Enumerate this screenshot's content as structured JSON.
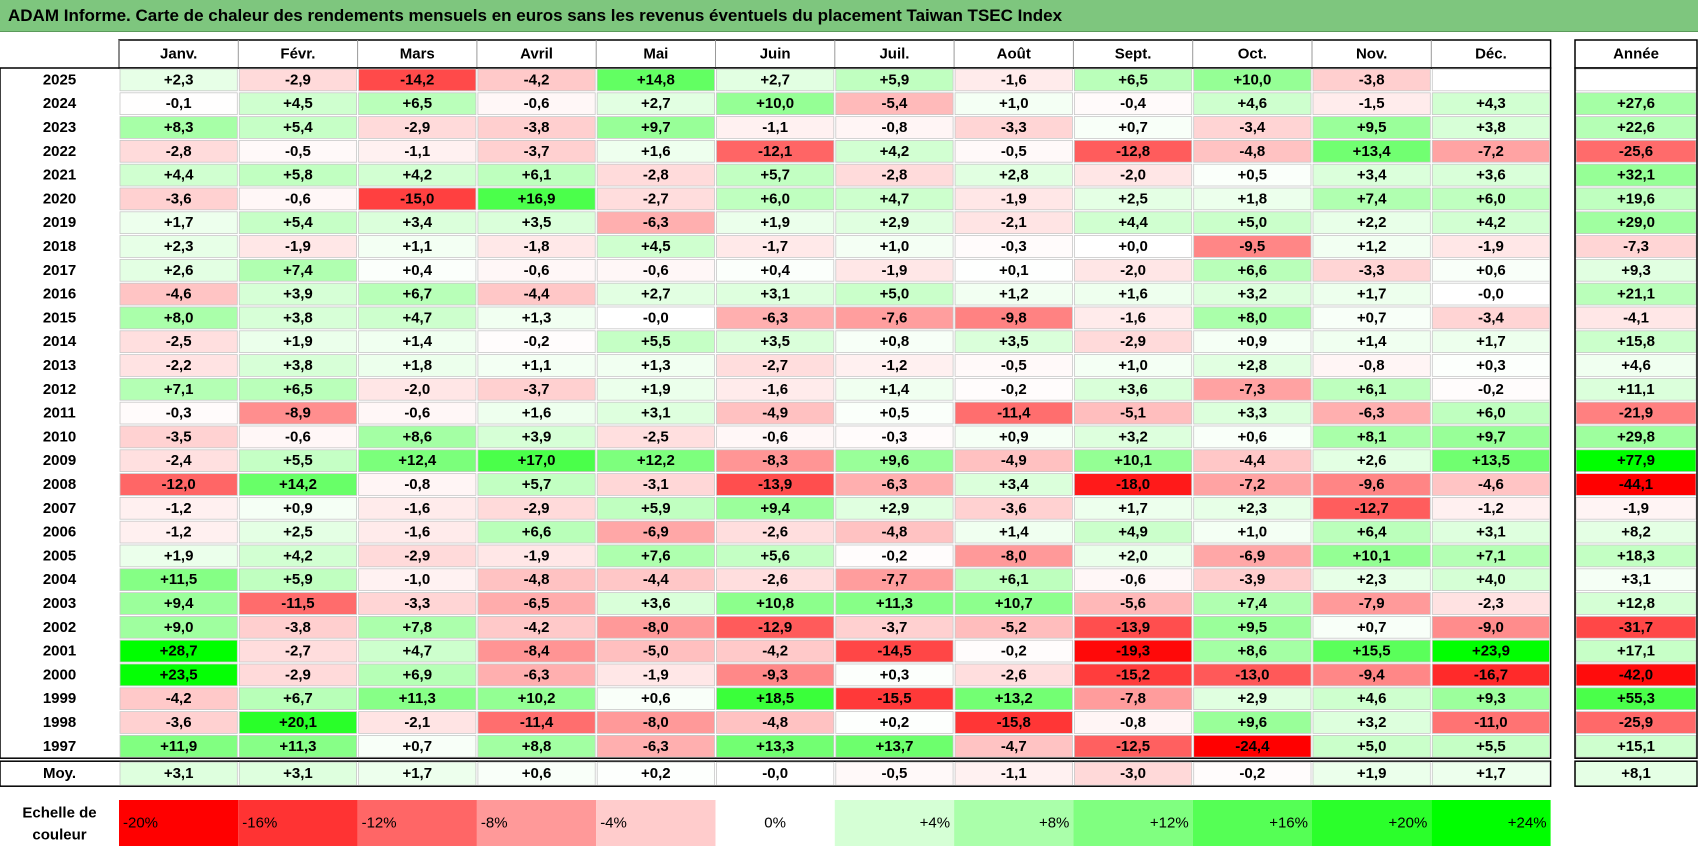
{
  "title": "ADAM Informe. Carte de chaleur des rendements mensuels en euros sans les revenus éventuels du placement Taiwan TSEC Index",
  "chart_data": {
    "type": "heatmap",
    "title": "ADAM Informe. Carte de chaleur des rendements mensuels en euros sans les revenus éventuels du placement Taiwan TSEC Index",
    "columns": [
      "Janv.",
      "Févr.",
      "Mars",
      "Avril",
      "Mai",
      "Juin",
      "Juil.",
      "Août",
      "Sept.",
      "Oct.",
      "Nov.",
      "Déc."
    ],
    "year_header": "Année",
    "rows": [
      {
        "year": "2025",
        "values": [
          2.3,
          -2.9,
          -14.2,
          -4.2,
          14.8,
          2.7,
          5.9,
          -1.6,
          6.5,
          10.0,
          -3.8,
          null
        ],
        "annual": null
      },
      {
        "year": "2024",
        "values": [
          -0.1,
          4.5,
          6.5,
          -0.6,
          2.7,
          10.0,
          -5.4,
          1.0,
          -0.4,
          4.6,
          -1.5,
          4.3
        ],
        "annual": 27.6
      },
      {
        "year": "2023",
        "values": [
          8.3,
          5.4,
          -2.9,
          -3.8,
          9.7,
          -1.1,
          -0.8,
          -3.3,
          0.7,
          -3.4,
          9.5,
          3.8
        ],
        "annual": 22.6
      },
      {
        "year": "2022",
        "values": [
          -2.8,
          -0.5,
          -1.1,
          -3.7,
          1.6,
          -12.1,
          4.2,
          -0.5,
          -12.8,
          -4.8,
          13.4,
          -7.2
        ],
        "annual": -25.6
      },
      {
        "year": "2021",
        "values": [
          4.4,
          5.8,
          4.2,
          6.1,
          -2.8,
          5.7,
          -2.8,
          2.8,
          -2.0,
          0.5,
          3.4,
          3.6
        ],
        "annual": 32.1
      },
      {
        "year": "2020",
        "values": [
          -3.6,
          -0.6,
          -15.0,
          16.9,
          -2.7,
          6.0,
          4.7,
          -1.9,
          2.5,
          1.8,
          7.4,
          6.0
        ],
        "annual": 19.6
      },
      {
        "year": "2019",
        "values": [
          1.7,
          5.4,
          3.4,
          3.5,
          -6.3,
          1.9,
          2.9,
          -2.1,
          4.4,
          5.0,
          2.2,
          4.2
        ],
        "annual": 29.0
      },
      {
        "year": "2018",
        "values": [
          2.3,
          -1.9,
          1.1,
          -1.8,
          4.5,
          -1.7,
          1.0,
          -0.3,
          0.0,
          -9.5,
          1.2,
          -1.9
        ],
        "annual": -7.3
      },
      {
        "year": "2017",
        "values": [
          2.6,
          7.4,
          0.4,
          -0.6,
          -0.6,
          0.4,
          -1.9,
          0.1,
          -2.0,
          6.6,
          -3.3,
          0.6
        ],
        "annual": 9.3
      },
      {
        "year": "2016",
        "values": [
          -4.6,
          3.9,
          6.7,
          -4.4,
          2.7,
          3.1,
          5.0,
          1.2,
          1.6,
          3.2,
          1.7,
          -0.0
        ],
        "annual": 21.1
      },
      {
        "year": "2015",
        "values": [
          8.0,
          3.8,
          4.7,
          1.3,
          -0.0,
          -6.3,
          -7.6,
          -9.8,
          -1.6,
          8.0,
          0.7,
          -3.4
        ],
        "annual": -4.1
      },
      {
        "year": "2014",
        "values": [
          -2.5,
          1.9,
          1.4,
          -0.2,
          5.5,
          3.5,
          0.8,
          3.5,
          -2.9,
          0.9,
          1.4,
          1.7
        ],
        "annual": 15.8
      },
      {
        "year": "2013",
        "values": [
          -2.2,
          3.8,
          1.8,
          1.1,
          1.3,
          -2.7,
          -1.2,
          -0.5,
          1.0,
          2.8,
          -0.8,
          0.3
        ],
        "annual": 4.6
      },
      {
        "year": "2012",
        "values": [
          7.1,
          6.5,
          -2.0,
          -3.7,
          1.9,
          -1.6,
          1.4,
          -0.2,
          3.6,
          -7.3,
          6.1,
          -0.2
        ],
        "annual": 11.1
      },
      {
        "year": "2011",
        "values": [
          -0.3,
          -8.9,
          -0.6,
          1.6,
          3.1,
          -4.9,
          0.5,
          -11.4,
          -5.1,
          3.3,
          -6.3,
          6.0
        ],
        "annual": -21.9
      },
      {
        "year": "2010",
        "values": [
          -3.5,
          -0.6,
          8.6,
          3.9,
          -2.5,
          -0.6,
          -0.3,
          0.9,
          3.2,
          0.6,
          8.1,
          9.7
        ],
        "annual": 29.8
      },
      {
        "year": "2009",
        "values": [
          -2.4,
          5.5,
          12.4,
          17.0,
          12.2,
          -8.3,
          9.6,
          -4.9,
          10.1,
          -4.4,
          2.6,
          13.5
        ],
        "annual": 77.9
      },
      {
        "year": "2008",
        "values": [
          -12.0,
          14.2,
          -0.8,
          5.7,
          -3.1,
          -13.9,
          -6.3,
          3.4,
          -18.0,
          -7.2,
          -9.6,
          -4.6
        ],
        "annual": -44.1
      },
      {
        "year": "2007",
        "values": [
          -1.2,
          0.9,
          -1.6,
          -2.9,
          5.9,
          9.4,
          2.9,
          -3.6,
          1.7,
          2.3,
          -12.7,
          -1.2
        ],
        "annual": -1.9
      },
      {
        "year": "2006",
        "values": [
          -1.2,
          2.5,
          -1.6,
          6.6,
          -6.9,
          -2.6,
          -4.8,
          1.4,
          4.9,
          1.0,
          6.4,
          3.1
        ],
        "annual": 8.2
      },
      {
        "year": "2005",
        "values": [
          1.9,
          4.2,
          -2.9,
          -1.9,
          7.6,
          5.6,
          -0.2,
          -8.0,
          2.0,
          -6.9,
          10.1,
          7.1
        ],
        "annual": 18.3
      },
      {
        "year": "2004",
        "values": [
          11.5,
          5.9,
          -1.0,
          -4.8,
          -4.4,
          -2.6,
          -7.7,
          6.1,
          -0.6,
          -3.9,
          2.3,
          4.0
        ],
        "annual": 3.1
      },
      {
        "year": "2003",
        "values": [
          9.4,
          -11.5,
          -3.3,
          -6.5,
          3.6,
          10.8,
          11.3,
          10.7,
          -5.6,
          7.4,
          -7.9,
          -2.3
        ],
        "annual": 12.8
      },
      {
        "year": "2002",
        "values": [
          9.0,
          -3.8,
          7.8,
          -4.2,
          -8.0,
          -12.9,
          -3.7,
          -5.2,
          -13.9,
          9.5,
          0.7,
          -9.0
        ],
        "annual": -31.7
      },
      {
        "year": "2001",
        "values": [
          28.7,
          -2.7,
          4.7,
          -8.4,
          -5.0,
          -4.2,
          -14.5,
          -0.2,
          -19.3,
          8.6,
          15.5,
          23.9
        ],
        "annual": 17.1
      },
      {
        "year": "2000",
        "values": [
          23.5,
          -2.9,
          6.9,
          -6.3,
          -1.9,
          -9.3,
          0.3,
          -2.6,
          -15.2,
          -13.0,
          -9.4,
          -16.7
        ],
        "annual": -42.0
      },
      {
        "year": "1999",
        "values": [
          -4.2,
          6.7,
          11.3,
          10.2,
          0.6,
          18.5,
          -15.5,
          13.2,
          -7.8,
          2.9,
          4.6,
          9.3
        ],
        "annual": 55.3
      },
      {
        "year": "1998",
        "values": [
          -3.6,
          20.1,
          -2.1,
          -11.4,
          -8.0,
          -4.8,
          0.2,
          -15.8,
          -0.8,
          9.6,
          3.2,
          -11.0
        ],
        "annual": -25.9
      },
      {
        "year": "1997",
        "values": [
          11.9,
          11.3,
          0.7,
          8.8,
          -6.3,
          13.3,
          13.7,
          -4.7,
          -12.5,
          -24.4,
          5.0,
          5.5
        ],
        "annual": 15.1
      }
    ],
    "average": {
      "label": "Moy.",
      "values": [
        3.1,
        3.1,
        1.7,
        0.6,
        0.2,
        -0.0,
        -0.5,
        -1.1,
        -3.0,
        -0.2,
        1.9,
        1.7
      ],
      "annual": 8.1
    },
    "scale": {
      "label_line1": "Echelle de",
      "label_line2": "couleur",
      "stops": [
        {
          "label": "-20%",
          "value": -20
        },
        {
          "label": "-16%",
          "value": -16
        },
        {
          "label": "-12%",
          "value": -12
        },
        {
          "label": "-8%",
          "value": -8
        },
        {
          "label": "-4%",
          "value": -4
        },
        {
          "label": "0%",
          "value": 0
        },
        {
          "label": "+4%",
          "value": 4
        },
        {
          "label": "+8%",
          "value": 8
        },
        {
          "label": "+12%",
          "value": 12
        },
        {
          "label": "+16%",
          "value": 16
        },
        {
          "label": "+20%",
          "value": 20
        },
        {
          "label": "+24%",
          "value": 24
        }
      ]
    },
    "colors": {
      "negative": "#ff0000",
      "neutral": "#ffffff",
      "positive": "#00ff00",
      "title_bg": "#7ec67e"
    }
  }
}
